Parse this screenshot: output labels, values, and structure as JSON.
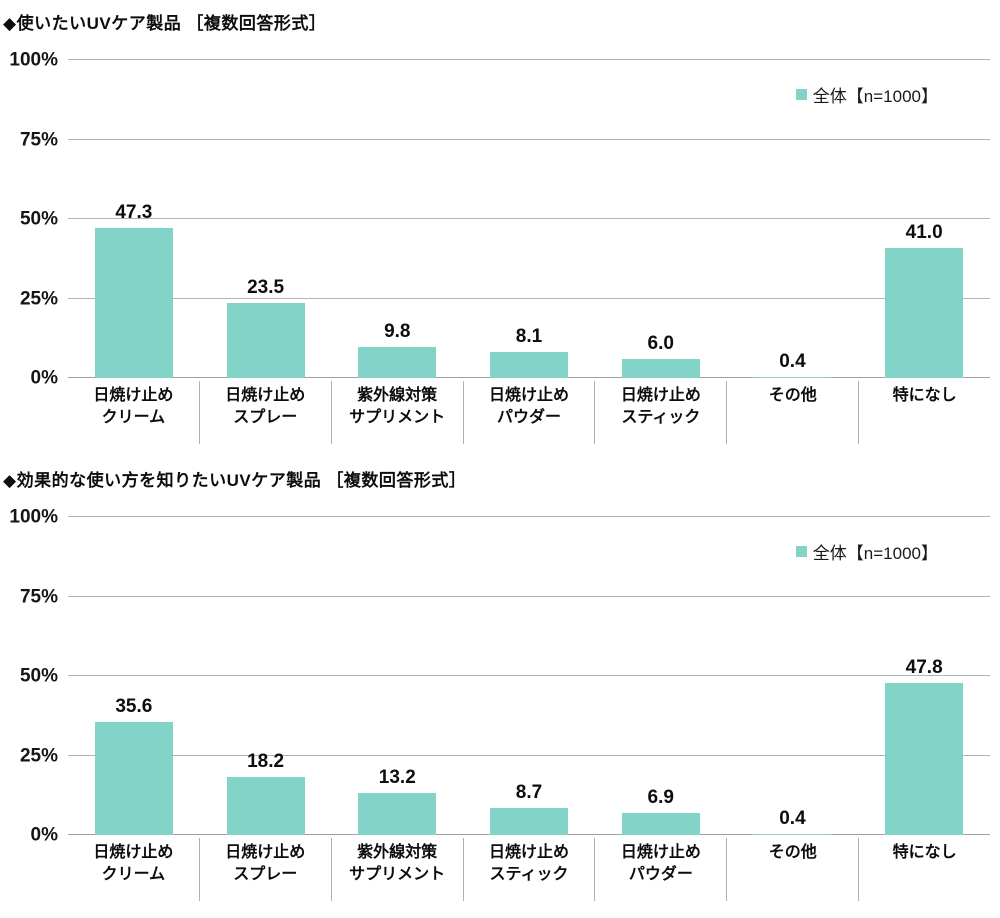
{
  "colors": {
    "bar": "#82d4c8",
    "grid": "#b3b3b3",
    "baseline": "#a0a0a0",
    "text": "#111111"
  },
  "chart_data": [
    {
      "type": "bar",
      "title": "◆使いたいUVケア製品 ［複数回答形式］",
      "legend": "全体【n=1000】",
      "categories": [
        "日焼け止め\nクリーム",
        "日焼け止め\nスプレー",
        "紫外線対策\nサプリメント",
        "日焼け止め\nパウダー",
        "日焼け止め\nスティック",
        "その他",
        "特になし"
      ],
      "values": [
        47.3,
        23.5,
        9.8,
        8.1,
        6.0,
        0.4,
        41.0
      ],
      "ylabel": "",
      "xlabel": "",
      "ylim": [
        0,
        100
      ],
      "yticks": [
        100,
        75,
        50,
        25,
        0
      ],
      "ytick_suffix": "%",
      "grid": true,
      "legend_position": "top-right"
    },
    {
      "type": "bar",
      "title": "◆効果的な使い方を知りたいUVケア製品 ［複数回答形式］",
      "legend": "全体【n=1000】",
      "categories": [
        "日焼け止め\nクリーム",
        "日焼け止め\nスプレー",
        "紫外線対策\nサプリメント",
        "日焼け止め\nスティック",
        "日焼け止め\nパウダー",
        "その他",
        "特になし"
      ],
      "values": [
        35.6,
        18.2,
        13.2,
        8.7,
        6.9,
        0.4,
        47.8
      ],
      "ylabel": "",
      "xlabel": "",
      "ylim": [
        0,
        100
      ],
      "yticks": [
        100,
        75,
        50,
        25,
        0
      ],
      "ytick_suffix": "%",
      "grid": true,
      "legend_position": "top-right"
    }
  ]
}
